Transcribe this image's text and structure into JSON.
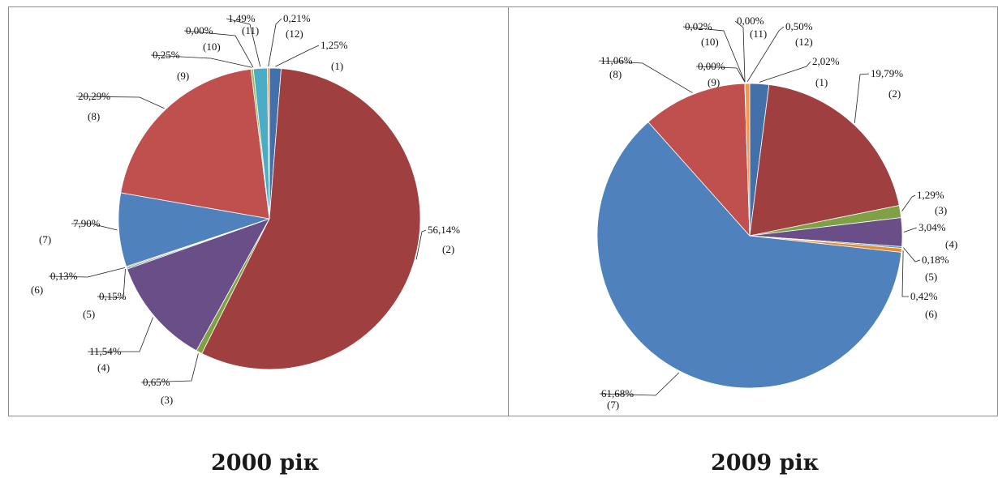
{
  "chart_data": [
    {
      "type": "pie",
      "title": "2000 рік",
      "slices": [
        {
          "category": "(1)",
          "value": 1.25,
          "label": "1,25%",
          "color": "#4370a8"
        },
        {
          "category": "(2)",
          "value": 56.14,
          "label": "56,14%",
          "color": "#9f3f3f"
        },
        {
          "category": "(3)",
          "value": 0.65,
          "label": "0,65%",
          "color": "#80a046"
        },
        {
          "category": "(4)",
          "value": 11.54,
          "label": "11,54%",
          "color": "#6a4e88"
        },
        {
          "category": "(5)",
          "value": 0.15,
          "label": "0,15%",
          "color": "#3393b0"
        },
        {
          "category": "(6)",
          "value": 0.13,
          "label": "0,13%",
          "color": "#e98a2a"
        },
        {
          "category": "(7)",
          "value": 7.9,
          "label": "7,90%",
          "color": "#4f81bd"
        },
        {
          "category": "(8)",
          "value": 20.29,
          "label": "20,29%",
          "color": "#c0504d"
        },
        {
          "category": "(9)",
          "value": 0.25,
          "label": "0,25%",
          "color": "#9bbb59"
        },
        {
          "category": "(10)",
          "value": 0.0,
          "label": "0,00%",
          "color": "#8064a2"
        },
        {
          "category": "(11)",
          "value": 1.49,
          "label": "1,49%",
          "color": "#4bacc6"
        },
        {
          "category": "(12)",
          "value": 0.21,
          "label": "0,21%",
          "color": "#f79646"
        }
      ]
    },
    {
      "type": "pie",
      "title": "2009 рік",
      "slices": [
        {
          "category": "(1)",
          "value": 2.02,
          "label": "2,02%",
          "color": "#4370a8"
        },
        {
          "category": "(2)",
          "value": 19.79,
          "label": "19,79%",
          "color": "#9f3f3f"
        },
        {
          "category": "(3)",
          "value": 1.29,
          "label": "1,29%",
          "color": "#80a046"
        },
        {
          "category": "(4)",
          "value": 3.04,
          "label": "3,04%",
          "color": "#6a4e88"
        },
        {
          "category": "(5)",
          "value": 0.18,
          "label": "0,18%",
          "color": "#3393b0"
        },
        {
          "category": "(6)",
          "value": 0.42,
          "label": "0,42%",
          "color": "#e98a2a"
        },
        {
          "category": "(7)",
          "value": 61.68,
          "label": "61,68%",
          "color": "#4f81bd"
        },
        {
          "category": "(8)",
          "value": 11.06,
          "label": "11,06%",
          "color": "#c0504d"
        },
        {
          "category": "(9)",
          "value": 0.0,
          "label": "0,00%",
          "color": "#9bbb59"
        },
        {
          "category": "(10)",
          "value": 0.02,
          "label": "0,02%",
          "color": "#8064a2"
        },
        {
          "category": "(11)",
          "value": 0.0,
          "label": "0,00%",
          "color": "#4bacc6"
        },
        {
          "category": "(12)",
          "value": 0.5,
          "label": "0,50%",
          "color": "#f79646"
        }
      ]
    }
  ]
}
